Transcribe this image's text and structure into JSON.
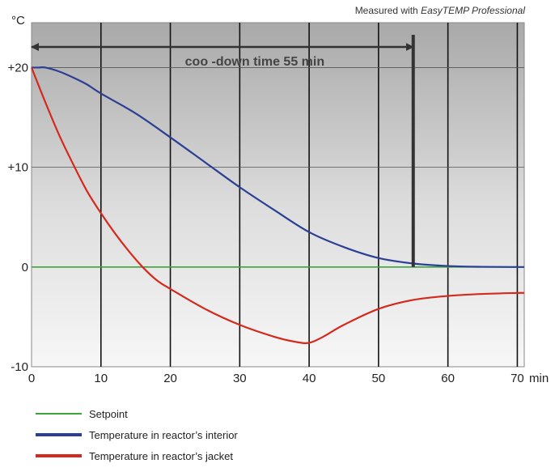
{
  "chart_data": {
    "type": "line",
    "title": "",
    "measured_note": {
      "prefix": "Measured with ",
      "brand": "EasyTEMP Professional"
    },
    "ylabel": "°C",
    "xlabel": "min",
    "xlim": [
      0,
      71
    ],
    "ylim": [
      -10,
      24.5
    ],
    "x_ticks": [
      0,
      10,
      20,
      30,
      40,
      50,
      60,
      70
    ],
    "x_tick_labels": [
      "0",
      "10",
      "20",
      "30",
      "40",
      "50",
      "60",
      "70"
    ],
    "y_ticks": [
      20,
      10,
      0,
      -10
    ],
    "y_tick_labels": [
      "+20",
      "+10",
      "0",
      "-10"
    ],
    "grid": true,
    "annotation": {
      "text": "coo -down time 55 min",
      "from_x": 0,
      "to_x": 55
    },
    "series": [
      {
        "name": "Setpoint",
        "color": "#3aa53a",
        "x": [
          0,
          71
        ],
        "y": [
          0,
          0
        ]
      },
      {
        "name": "Temperature in reactor’s interior",
        "color": "#2b3f94",
        "x": [
          0,
          1,
          2,
          4,
          6,
          8,
          10,
          15,
          20,
          25,
          30,
          35,
          40,
          45,
          50,
          55,
          60,
          65,
          70,
          71
        ],
        "y": [
          20,
          20,
          20,
          19.6,
          19.0,
          18.3,
          17.4,
          15.4,
          13.0,
          10.5,
          8.0,
          5.7,
          3.5,
          2.0,
          0.9,
          0.35,
          0.1,
          0.02,
          0,
          0
        ]
      },
      {
        "name": "Temperature in reactor’s jacket",
        "color": "#d42a1e",
        "x": [
          0,
          2,
          4,
          6,
          8,
          10,
          12,
          14,
          16,
          18,
          20,
          25,
          30,
          35,
          38,
          40,
          42,
          45,
          50,
          55,
          60,
          65,
          70,
          71
        ],
        "y": [
          20,
          16.5,
          13.2,
          10.3,
          7.6,
          5.4,
          3.4,
          1.6,
          0,
          -1.3,
          -2.2,
          -4.2,
          -5.8,
          -7.0,
          -7.5,
          -7.6,
          -7.0,
          -5.8,
          -4.2,
          -3.3,
          -2.9,
          -2.7,
          -2.6,
          -2.6
        ]
      }
    ],
    "legend_position": "bottom-left"
  }
}
